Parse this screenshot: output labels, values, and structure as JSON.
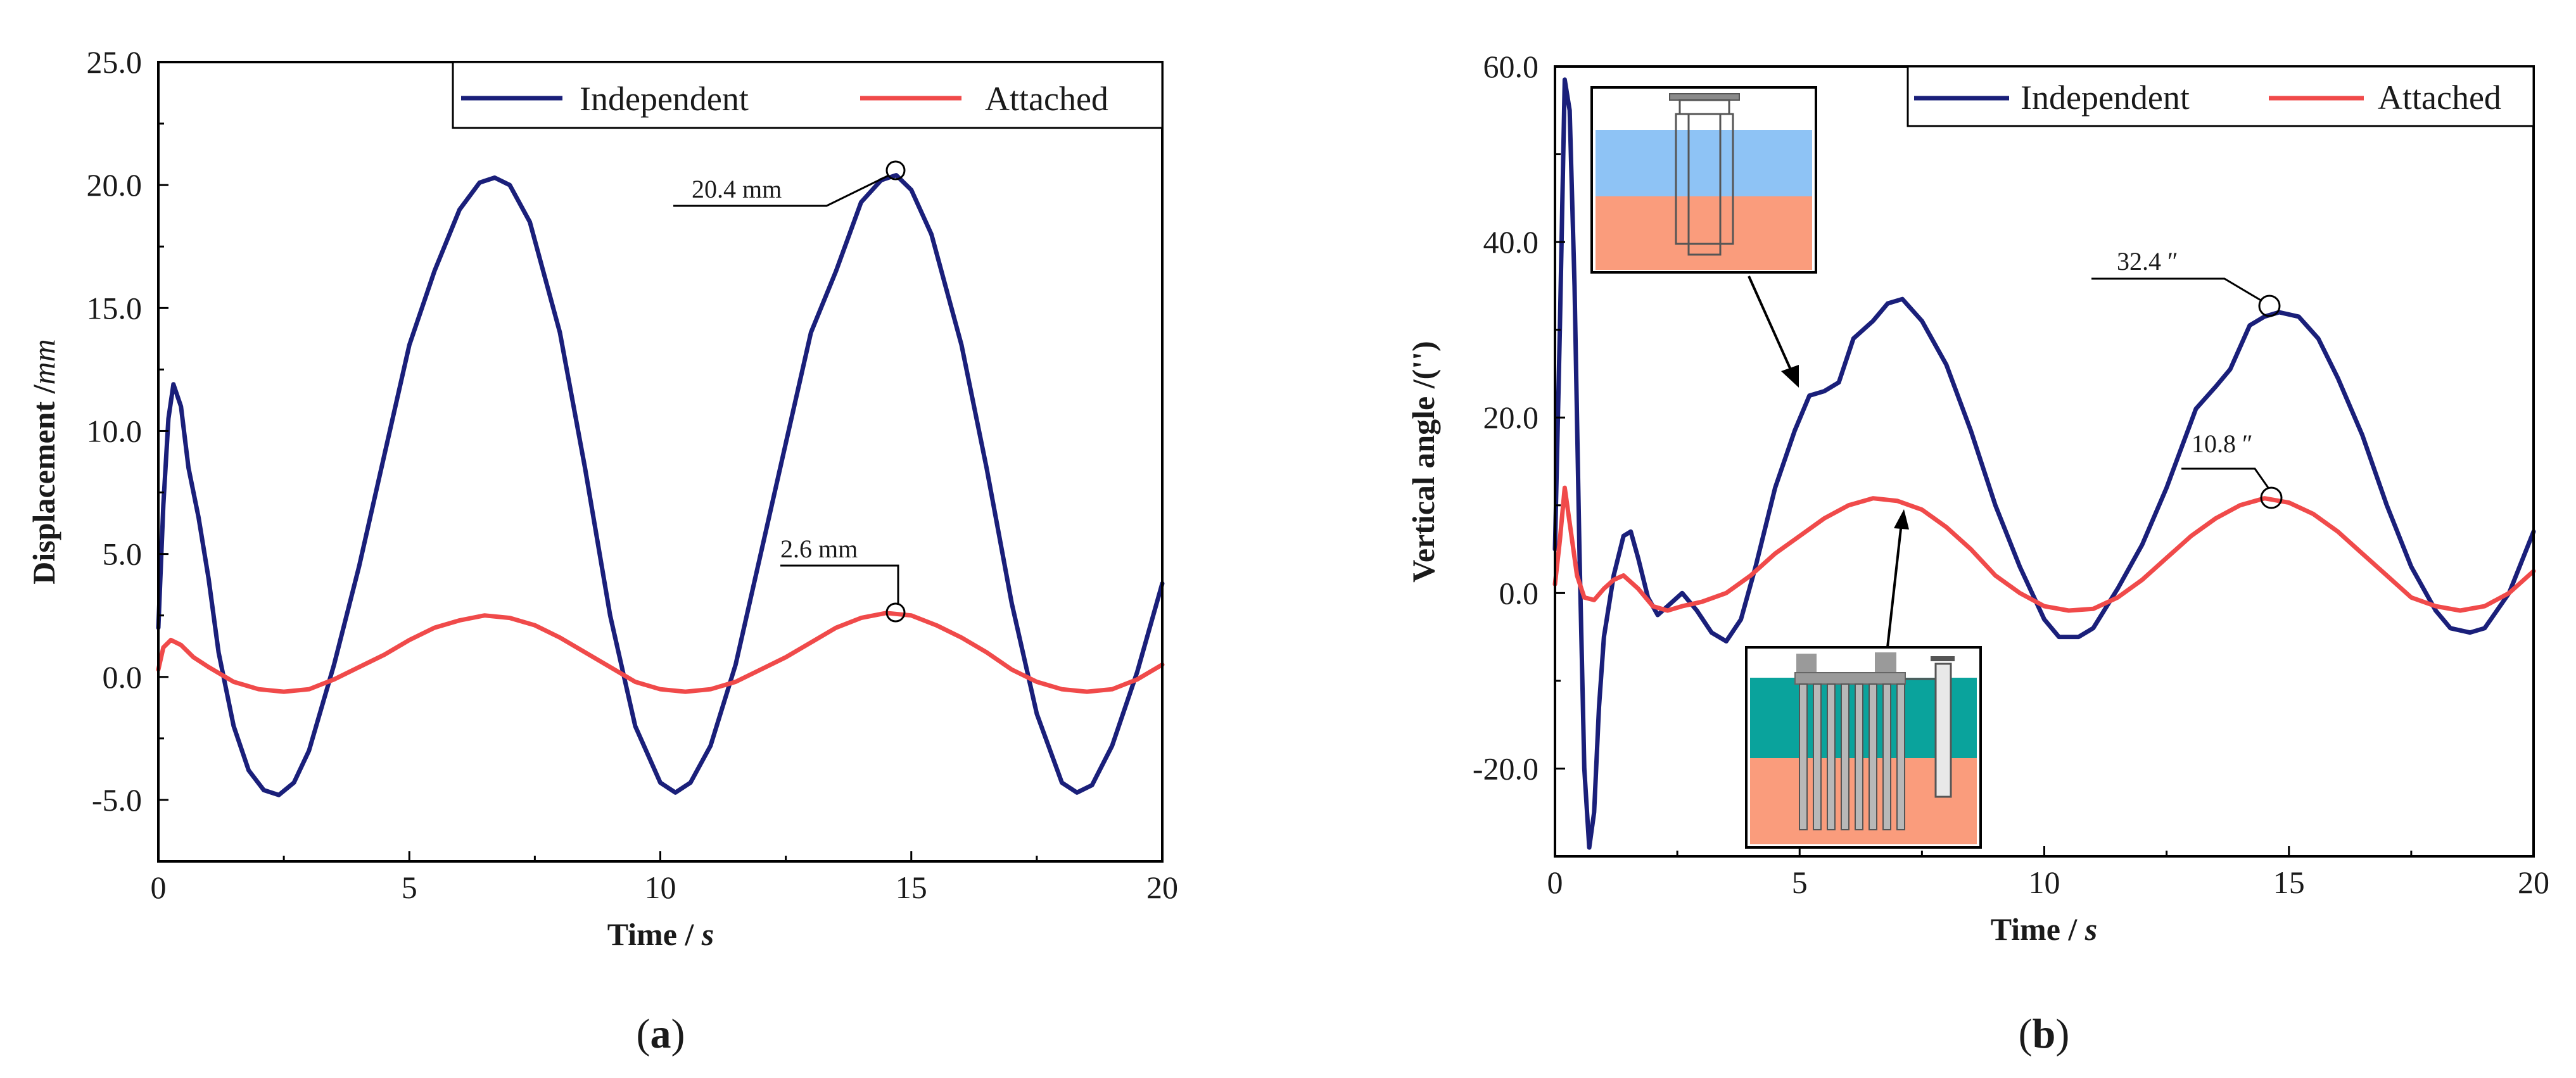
{
  "chart_data": [
    {
      "panel": "a",
      "type": "line",
      "panel_label": "(a)",
      "xlabel": "Time / s",
      "ylabel": "Displacement /mm",
      "xlim": [
        0,
        20
      ],
      "ylim": [
        -7.5,
        25.0
      ],
      "xticks": [
        0,
        5,
        10,
        15,
        20
      ],
      "yticks": [
        -5.0,
        0.0,
        5.0,
        10.0,
        15.0,
        20.0,
        25.0
      ],
      "xtick_labels": [
        "0",
        "5",
        "10",
        "15",
        "20"
      ],
      "ytick_labels": [
        "-5.0",
        "0.0",
        "5.0",
        "10.0",
        "15.0",
        "20.0",
        "25.0"
      ],
      "legend": {
        "position": "top-right",
        "entries": [
          "Independent",
          "Attached"
        ]
      },
      "series": [
        {
          "name": "Independent",
          "color": "#1a1f7a",
          "x": [
            0,
            0.1,
            0.2,
            0.3,
            0.45,
            0.6,
            0.8,
            1.0,
            1.2,
            1.5,
            1.8,
            2.1,
            2.4,
            2.7,
            3.0,
            3.5,
            4.0,
            4.5,
            5.0,
            5.5,
            6.0,
            6.4,
            6.7,
            7.0,
            7.4,
            8.0,
            8.5,
            9.0,
            9.5,
            10.0,
            10.3,
            10.6,
            11.0,
            11.5,
            12.0,
            12.5,
            13.0,
            13.5,
            14.0,
            14.4,
            14.7,
            15.0,
            15.4,
            16.0,
            16.5,
            17.0,
            17.5,
            18.0,
            18.3,
            18.6,
            19.0,
            19.5,
            20.0
          ],
          "values": [
            2.0,
            7.0,
            10.5,
            11.9,
            11.0,
            8.5,
            6.5,
            4.0,
            1.0,
            -2.0,
            -3.8,
            -4.6,
            -4.8,
            -4.3,
            -3.0,
            0.5,
            4.5,
            9.0,
            13.5,
            16.5,
            19.0,
            20.1,
            20.3,
            20.0,
            18.5,
            14.0,
            8.5,
            2.5,
            -2.0,
            -4.3,
            -4.7,
            -4.3,
            -2.8,
            0.5,
            5.0,
            9.5,
            14.0,
            16.5,
            19.3,
            20.2,
            20.4,
            19.8,
            18.0,
            13.5,
            8.5,
            3.0,
            -1.5,
            -4.3,
            -4.7,
            -4.4,
            -2.8,
            0.2,
            3.8
          ]
        },
        {
          "name": "Attached",
          "color": "#f04a4a",
          "x": [
            0,
            0.1,
            0.25,
            0.45,
            0.7,
            1.0,
            1.5,
            2.0,
            2.5,
            3.0,
            3.5,
            4.0,
            4.5,
            5.0,
            5.5,
            6.0,
            6.5,
            7.0,
            7.5,
            8.0,
            8.5,
            9.0,
            9.5,
            10.0,
            10.5,
            11.0,
            11.5,
            12.0,
            12.5,
            13.0,
            13.5,
            14.0,
            14.5,
            15.0,
            15.5,
            16.0,
            16.5,
            17.0,
            17.5,
            18.0,
            18.5,
            19.0,
            19.5,
            20.0
          ],
          "values": [
            0.3,
            1.2,
            1.5,
            1.3,
            0.8,
            0.4,
            -0.2,
            -0.5,
            -0.6,
            -0.5,
            -0.1,
            0.4,
            0.9,
            1.5,
            2.0,
            2.3,
            2.5,
            2.4,
            2.1,
            1.6,
            1.0,
            0.4,
            -0.2,
            -0.5,
            -0.6,
            -0.5,
            -0.2,
            0.3,
            0.8,
            1.4,
            2.0,
            2.4,
            2.6,
            2.5,
            2.1,
            1.6,
            1.0,
            0.3,
            -0.2,
            -0.5,
            -0.6,
            -0.5,
            -0.1,
            0.5
          ]
        }
      ],
      "annotations": [
        {
          "text": "20.4 mm",
          "point": [
            14.7,
            20.4
          ]
        },
        {
          "text": "2.6 mm",
          "point": [
            14.8,
            2.6
          ]
        }
      ]
    },
    {
      "panel": "b",
      "type": "line",
      "panel_label": "(b)",
      "xlabel": "Time / s",
      "ylabel": "Vertical angle /('')",
      "xlim": [
        0,
        20
      ],
      "ylim": [
        -30.0,
        60.0
      ],
      "xticks": [
        0,
        5,
        10,
        15,
        20
      ],
      "yticks": [
        -20.0,
        0.0,
        20.0,
        40.0,
        60.0
      ],
      "xtick_labels": [
        "0",
        "5",
        "10",
        "15",
        "20"
      ],
      "ytick_labels": [
        "-20.0",
        "0.0",
        "20.0",
        "40.0",
        "60.0"
      ],
      "legend": {
        "position": "top-right",
        "entries": [
          "Independent",
          "Attached"
        ]
      },
      "series": [
        {
          "name": "Independent",
          "color": "#1a1f7a",
          "x": [
            0,
            0.1,
            0.2,
            0.3,
            0.4,
            0.5,
            0.6,
            0.7,
            0.8,
            0.9,
            1.0,
            1.2,
            1.4,
            1.55,
            1.7,
            1.9,
            2.1,
            2.3,
            2.6,
            2.9,
            3.2,
            3.5,
            3.8,
            4.1,
            4.5,
            4.9,
            5.2,
            5.5,
            5.8,
            6.1,
            6.5,
            6.8,
            7.1,
            7.5,
            8.0,
            8.5,
            9.0,
            9.5,
            10.0,
            10.3,
            10.7,
            11.0,
            11.5,
            12.0,
            12.5,
            12.8,
            13.1,
            13.5,
            13.8,
            14.2,
            14.5,
            14.8,
            15.2,
            15.6,
            16.0,
            16.5,
            17.0,
            17.5,
            18.0,
            18.3,
            18.7,
            19.0,
            19.5,
            20.0
          ],
          "values": [
            5.0,
            30.0,
            58.5,
            55.0,
            35.0,
            5.0,
            -20.0,
            -29.0,
            -25.0,
            -13.0,
            -5.0,
            2.0,
            6.5,
            7.0,
            4.0,
            -0.5,
            -2.5,
            -1.5,
            0.0,
            -2.0,
            -4.5,
            -5.5,
            -3.0,
            3.0,
            12.0,
            18.5,
            22.5,
            23.0,
            24.0,
            29.0,
            31.0,
            33.0,
            33.5,
            31.0,
            26.0,
            18.5,
            10.0,
            3.0,
            -3.0,
            -5.0,
            -5.0,
            -4.0,
            0.5,
            5.5,
            12.0,
            16.5,
            21.0,
            23.5,
            25.5,
            30.5,
            31.5,
            32.0,
            31.5,
            29.0,
            24.5,
            18.0,
            10.0,
            3.0,
            -2.0,
            -4.0,
            -4.5,
            -4.0,
            0.0,
            7.0
          ]
        },
        {
          "name": "Attached",
          "color": "#f04a4a",
          "x": [
            0,
            0.1,
            0.2,
            0.3,
            0.45,
            0.6,
            0.8,
            1.0,
            1.2,
            1.4,
            1.7,
            2.0,
            2.3,
            2.6,
            3.0,
            3.5,
            4.0,
            4.5,
            5.0,
            5.5,
            6.0,
            6.5,
            7.0,
            7.5,
            8.0,
            8.5,
            9.0,
            9.5,
            10.0,
            10.5,
            11.0,
            11.5,
            12.0,
            12.5,
            13.0,
            13.5,
            14.0,
            14.5,
            15.0,
            15.5,
            16.0,
            16.5,
            17.0,
            17.5,
            18.0,
            18.5,
            19.0,
            19.5,
            20.0
          ],
          "values": [
            1.0,
            6.0,
            12.0,
            8.0,
            2.0,
            -0.5,
            -0.8,
            0.5,
            1.5,
            2.0,
            0.5,
            -1.5,
            -2.0,
            -1.5,
            -1.0,
            0.0,
            2.0,
            4.5,
            6.5,
            8.5,
            10.0,
            10.8,
            10.5,
            9.5,
            7.5,
            5.0,
            2.0,
            0.0,
            -1.5,
            -2.0,
            -1.8,
            -0.5,
            1.5,
            4.0,
            6.5,
            8.5,
            10.0,
            10.8,
            10.3,
            9.0,
            7.0,
            4.5,
            2.0,
            -0.5,
            -1.5,
            -2.0,
            -1.5,
            0.0,
            2.5
          ]
        }
      ],
      "annotations": [
        {
          "text": "32.4 ″",
          "point": [
            14.5,
            32.4
          ]
        },
        {
          "text": "10.8 ″",
          "point": [
            14.6,
            10.8
          ]
        }
      ]
    }
  ]
}
